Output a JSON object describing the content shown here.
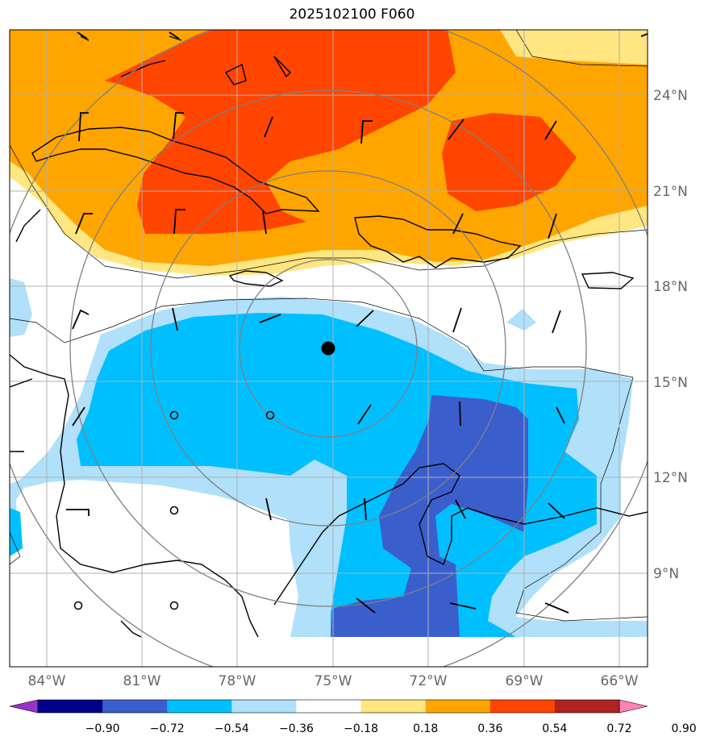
{
  "title": "2025102100 F060",
  "latitude_labels": [
    "24°N",
    "21°N",
    "18°N",
    "15°N",
    "12°N",
    "9°N"
  ],
  "longitude_labels": [
    "84°W",
    "81°W",
    "78°W",
    "75°W",
    "72°W",
    "69°W",
    "66°W"
  ],
  "colorbar": {
    "tick_labels": [
      "−0.90",
      "−0.72",
      "−0.54",
      "−0.36",
      "−0.18",
      "0.18",
      "0.36",
      "0.54",
      "0.72",
      "0.90"
    ],
    "colors": [
      "#9932cc",
      "#00008b",
      "#3a5fcd",
      "#00bfff",
      "#b0e0fa",
      "#ffffff",
      "#ffe680",
      "#ffa500",
      "#ff4500",
      "#b22222",
      "#ff82b4"
    ]
  },
  "storm_center_marker": "black-dot",
  "range_rings": "concentric-gray-circles",
  "wind_barbs": "black-barbs"
}
